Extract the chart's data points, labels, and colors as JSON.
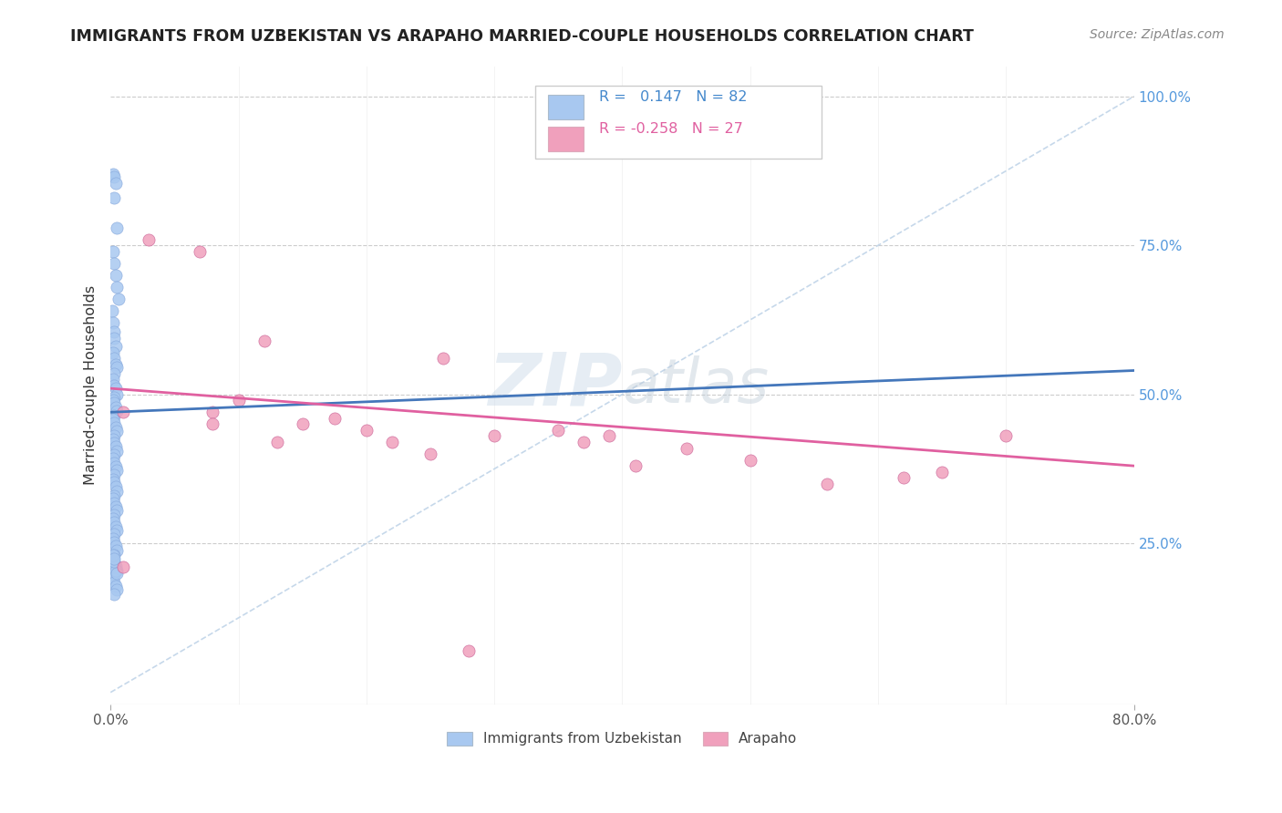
{
  "title": "IMMIGRANTS FROM UZBEKISTAN VS ARAPAHO MARRIED-COUPLE HOUSEHOLDS CORRELATION CHART",
  "source": "Source: ZipAtlas.com",
  "ylabel": "Married-couple Households",
  "ytick_labels": [
    "25.0%",
    "50.0%",
    "75.0%",
    "100.0%"
  ],
  "ytick_values": [
    0.25,
    0.5,
    0.75,
    1.0
  ],
  "legend_label1": "Immigrants from Uzbekistan",
  "legend_label2": "Arapaho",
  "r1": 0.147,
  "n1": 82,
  "r2": -0.258,
  "n2": 27,
  "color_blue": "#a8c8f0",
  "color_pink": "#f0a0bc",
  "trendline_blue": "#4477bb",
  "trendline_pink": "#e060a0",
  "diagonal_color": "#c0d4e8",
  "watermark_zip": "ZIP",
  "watermark_atlas": "atlas",
  "xlim": [
    0.0,
    0.8
  ],
  "ylim": [
    -0.02,
    1.05
  ],
  "blue_x": [
    0.002,
    0.003,
    0.004,
    0.003,
    0.005,
    0.002,
    0.003,
    0.004,
    0.005,
    0.006,
    0.001,
    0.002,
    0.003,
    0.003,
    0.004,
    0.002,
    0.003,
    0.004,
    0.005,
    0.003,
    0.002,
    0.003,
    0.004,
    0.005,
    0.003,
    0.002,
    0.003,
    0.004,
    0.005,
    0.003,
    0.002,
    0.003,
    0.004,
    0.005,
    0.003,
    0.002,
    0.003,
    0.004,
    0.005,
    0.003,
    0.002,
    0.003,
    0.004,
    0.005,
    0.003,
    0.002,
    0.003,
    0.004,
    0.005,
    0.003,
    0.002,
    0.003,
    0.004,
    0.005,
    0.003,
    0.002,
    0.003,
    0.004,
    0.005,
    0.003,
    0.002,
    0.003,
    0.004,
    0.005,
    0.003,
    0.002,
    0.003,
    0.004,
    0.005,
    0.003,
    0.002,
    0.003,
    0.004,
    0.005,
    0.003,
    0.002,
    0.003,
    0.004,
    0.005,
    0.003,
    0.002,
    0.003
  ],
  "blue_y": [
    0.87,
    0.865,
    0.855,
    0.83,
    0.78,
    0.74,
    0.72,
    0.7,
    0.68,
    0.66,
    0.64,
    0.62,
    0.605,
    0.595,
    0.58,
    0.57,
    0.56,
    0.55,
    0.545,
    0.535,
    0.525,
    0.515,
    0.51,
    0.5,
    0.495,
    0.49,
    0.485,
    0.478,
    0.472,
    0.465,
    0.458,
    0.452,
    0.445,
    0.438,
    0.43,
    0.425,
    0.418,
    0.412,
    0.405,
    0.398,
    0.392,
    0.385,
    0.378,
    0.372,
    0.365,
    0.358,
    0.352,
    0.345,
    0.338,
    0.33,
    0.325,
    0.318,
    0.312,
    0.305,
    0.298,
    0.292,
    0.285,
    0.278,
    0.272,
    0.265,
    0.258,
    0.252,
    0.245,
    0.238,
    0.23,
    0.225,
    0.218,
    0.212,
    0.205,
    0.198,
    0.192,
    0.185,
    0.178,
    0.172,
    0.165,
    0.215,
    0.21,
    0.205,
    0.2,
    0.22,
    0.23,
    0.225
  ],
  "pink_x": [
    0.01,
    0.03,
    0.07,
    0.08,
    0.1,
    0.12,
    0.13,
    0.15,
    0.175,
    0.2,
    0.22,
    0.25,
    0.26,
    0.3,
    0.35,
    0.37,
    0.39,
    0.41,
    0.45,
    0.5,
    0.56,
    0.62,
    0.65,
    0.7,
    0.01,
    0.08,
    0.28
  ],
  "pink_y": [
    0.47,
    0.76,
    0.74,
    0.47,
    0.49,
    0.59,
    0.42,
    0.45,
    0.46,
    0.44,
    0.42,
    0.4,
    0.56,
    0.43,
    0.44,
    0.42,
    0.43,
    0.38,
    0.41,
    0.39,
    0.35,
    0.36,
    0.37,
    0.43,
    0.21,
    0.45,
    0.07
  ]
}
